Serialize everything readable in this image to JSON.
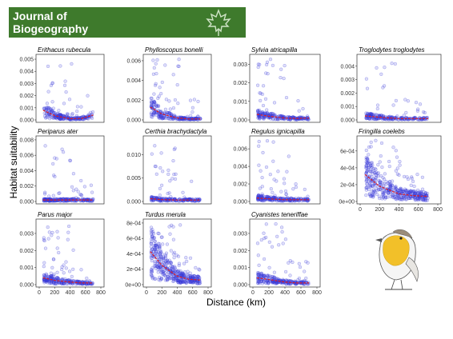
{
  "banner": {
    "line1": "Journal of",
    "line2": "Biogeography",
    "background_color": "#3e7a2c",
    "icon": "maple-leaf-icon"
  },
  "figure": {
    "ylabel": "Habitat suitability",
    "xlabel": "Distance (km)",
    "point_color": "#3a3ad8",
    "fit_color": "#e02020",
    "illustration": "robin-bird-icon"
  },
  "chart_data": [
    {
      "type": "scatter",
      "title": "Erithacus rubecula",
      "xlim": [
        0,
        800
      ],
      "ylim": [
        0,
        0.0052
      ],
      "yticks": [
        "0.000",
        "0.001",
        "0.002",
        "0.003",
        "0.004",
        "0.005"
      ],
      "ytick_values": [
        0,
        0.001,
        0.002,
        0.003,
        0.004,
        0.005
      ],
      "xticks": [],
      "n_points": 230,
      "fit": [
        [
          50,
          0.0008
        ],
        [
          200,
          0.00035
        ],
        [
          400,
          0.0001
        ],
        [
          550,
          0.00012
        ],
        [
          700,
          0.0004
        ]
      ]
    },
    {
      "type": "scatter",
      "title": "Phylloscopus bonelli",
      "xlim": [
        0,
        800
      ],
      "ylim": [
        0,
        0.0064
      ],
      "yticks": [
        "0.000",
        "0.002",
        "0.004",
        "0.006"
      ],
      "ytick_values": [
        0,
        0.002,
        0.004,
        0.006
      ],
      "xticks": [],
      "n_points": 260,
      "fit": [
        [
          50,
          0.0013
        ],
        [
          200,
          0.0006
        ],
        [
          400,
          0.0002
        ],
        [
          550,
          0.0001
        ],
        [
          700,
          0.0001
        ]
      ]
    },
    {
      "type": "scatter",
      "title": "Sylvia atricapilla",
      "xlim": [
        0,
        800
      ],
      "ylim": [
        0,
        0.0034
      ],
      "yticks": [
        "0.000",
        "0.001",
        "0.002",
        "0.003"
      ],
      "ytick_values": [
        0,
        0.001,
        0.002,
        0.003
      ],
      "xticks": [],
      "n_points": 230,
      "fit": [
        [
          50,
          0.0003
        ],
        [
          200,
          0.0002
        ],
        [
          400,
          0.0001
        ],
        [
          550,
          8e-05
        ],
        [
          700,
          0.0001
        ]
      ]
    },
    {
      "type": "scatter",
      "title": "Troglodytes troglodytes",
      "xlim": [
        0,
        800
      ],
      "ylim": [
        0,
        0.0047
      ],
      "yticks": [
        "0.000",
        "0.001",
        "0.002",
        "0.003",
        "0.004"
      ],
      "ytick_values": [
        0,
        0.001,
        0.002,
        0.003,
        0.004
      ],
      "xticks": [],
      "n_points": 220,
      "fit": [
        [
          50,
          0.0003
        ],
        [
          200,
          0.0002
        ],
        [
          400,
          0.0001
        ],
        [
          550,
          0.0001
        ],
        [
          700,
          0.0001
        ]
      ]
    },
    {
      "type": "scatter",
      "title": "Periparus ater",
      "xlim": [
        0,
        800
      ],
      "ylim": [
        0,
        0.0082
      ],
      "yticks": [
        "0.000",
        "0.002",
        "0.004",
        "0.006",
        "0.008"
      ],
      "ytick_values": [
        0,
        0.002,
        0.004,
        0.006,
        0.008
      ],
      "xticks": [],
      "n_points": 240,
      "fit": [
        [
          50,
          0.0002
        ],
        [
          200,
          0.0002
        ],
        [
          400,
          0.0002
        ],
        [
          550,
          0.0002
        ],
        [
          700,
          0.0002
        ]
      ]
    },
    {
      "type": "scatter",
      "title": "Certhia brachydactyla",
      "xlim": [
        0,
        800
      ],
      "ylim": [
        0,
        0.0135
      ],
      "yticks": [
        "0.000",
        "0.005",
        "0.010"
      ],
      "ytick_values": [
        0,
        0.005,
        0.01
      ],
      "xticks": [],
      "n_points": 200,
      "fit": [
        [
          50,
          0.0006
        ],
        [
          200,
          0.0004
        ],
        [
          400,
          0.0003
        ],
        [
          550,
          0.0003
        ],
        [
          700,
          0.0003
        ]
      ]
    },
    {
      "type": "scatter",
      "title": "Regulus ignicapilla",
      "xlim": [
        0,
        800
      ],
      "ylim": [
        0,
        0.0072
      ],
      "yticks": [
        "0.000",
        "0.002",
        "0.004",
        "0.006"
      ],
      "ytick_values": [
        0,
        0.002,
        0.004,
        0.006
      ],
      "xticks": [],
      "n_points": 240,
      "fit": [
        [
          50,
          0.0004
        ],
        [
          200,
          0.0003
        ],
        [
          400,
          0.0002
        ],
        [
          550,
          0.0002
        ],
        [
          700,
          0.0002
        ]
      ]
    },
    {
      "type": "scatter",
      "title": "Fringilla coelebs",
      "xlim": [
        0,
        800
      ],
      "ylim": [
        0,
        0.00075
      ],
      "yticks": [
        "0e+00",
        "2e-04",
        "4e-04",
        "6e-04"
      ],
      "ytick_values": [
        0,
        0.0002,
        0.0004,
        0.0006
      ],
      "xticks": [
        "0",
        "200",
        "400",
        "600",
        "800"
      ],
      "xtick_values": [
        0,
        200,
        400,
        600,
        800
      ],
      "n_points": 420,
      "fit": [
        [
          50,
          0.00032
        ],
        [
          200,
          0.00018
        ],
        [
          400,
          9e-05
        ],
        [
          550,
          7e-05
        ],
        [
          700,
          6e-05
        ]
      ]
    },
    {
      "type": "scatter",
      "title": "Parus major",
      "xlim": [
        0,
        800
      ],
      "ylim": [
        0,
        0.0037
      ],
      "yticks": [
        "0.000",
        "0.001",
        "0.002",
        "0.003"
      ],
      "ytick_values": [
        0,
        0.001,
        0.002,
        0.003
      ],
      "xticks": [
        "0",
        "200",
        "400",
        "600",
        "800"
      ],
      "xtick_values": [
        0,
        200,
        400,
        600,
        800
      ],
      "n_points": 260,
      "fit": [
        [
          50,
          0.0004
        ],
        [
          200,
          0.00025
        ],
        [
          400,
          0.00015
        ],
        [
          550,
          0.0001
        ],
        [
          700,
          0.0001
        ]
      ]
    },
    {
      "type": "scatter",
      "title": "Turdus merula",
      "xlim": [
        0,
        800
      ],
      "ylim": [
        0,
        0.00082
      ],
      "yticks": [
        "0e+00",
        "2e-04",
        "4e-04",
        "6e-04",
        "8e-04"
      ],
      "ytick_values": [
        0,
        0.0002,
        0.0004,
        0.0006,
        0.0008
      ],
      "xticks": [
        "0",
        "200",
        "400",
        "600",
        "800"
      ],
      "xtick_values": [
        0,
        200,
        400,
        600,
        800
      ],
      "n_points": 420,
      "fit": [
        [
          50,
          0.00043
        ],
        [
          200,
          0.00025
        ],
        [
          400,
          0.00011
        ],
        [
          550,
          7e-05
        ],
        [
          700,
          6e-05
        ]
      ]
    },
    {
      "type": "scatter",
      "title": "Cyanistes teneriffae",
      "xlim": [
        0,
        800
      ],
      "ylim": [
        0,
        0.0037
      ],
      "yticks": [
        "0.000",
        "0.001",
        "0.002",
        "0.003"
      ],
      "ytick_values": [
        0,
        0.001,
        0.002,
        0.003
      ],
      "xticks": [
        "0",
        "200",
        "400",
        "600",
        "800"
      ],
      "xtick_values": [
        0,
        200,
        400,
        600,
        800
      ],
      "n_points": 260,
      "fit": [
        [
          50,
          0.0004
        ],
        [
          200,
          0.0003
        ],
        [
          400,
          0.00015
        ],
        [
          550,
          0.0001
        ],
        [
          700,
          0.0001
        ]
      ]
    }
  ]
}
